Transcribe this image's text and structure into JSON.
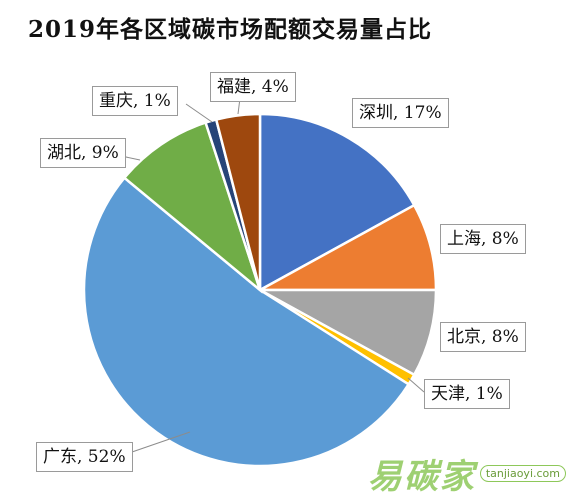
{
  "chart_data": {
    "type": "pie",
    "title": "2019年各区域碳市场配额交易量占比",
    "slices": [
      {
        "label": "深圳",
        "value": 17,
        "color": "#4472c4"
      },
      {
        "label": "上海",
        "value": 8,
        "color": "#ed7d31"
      },
      {
        "label": "北京",
        "value": 8,
        "color": "#a5a5a5"
      },
      {
        "label": "天津",
        "value": 1,
        "color": "#ffc000"
      },
      {
        "label": "广东",
        "value": 52,
        "color": "#5b9bd5"
      },
      {
        "label": "湖北",
        "value": 9,
        "color": "#70ad47"
      },
      {
        "label": "重庆",
        "value": 1,
        "color": "#264478"
      },
      {
        "label": "福建",
        "value": 4,
        "color": "#9e480e"
      }
    ],
    "data_labels": [
      "深圳, 17%",
      "上海, 8%",
      "北京, 8%",
      "天津, 1%",
      "广东, 52%",
      "湖北, 9%",
      "重庆, 1%",
      "福建, 4%"
    ]
  },
  "watermark": {
    "text": "易碳家",
    "url": "tanjiaoyi.com"
  }
}
